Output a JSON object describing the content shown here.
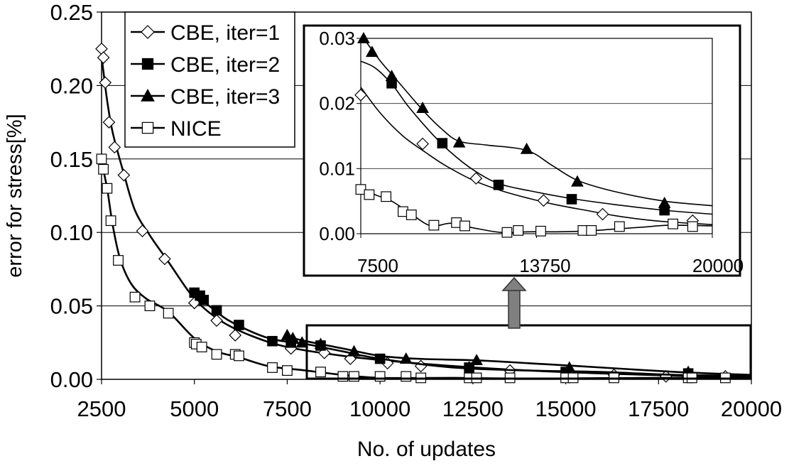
{
  "chart_data": [
    {
      "type": "line",
      "xlabel": "No. of updates",
      "ylabel": "error for stress[%]",
      "xlim": [
        2500,
        20000
      ],
      "ylim": [
        0,
        0.25
      ],
      "x_ticks": [
        2500,
        5000,
        7500,
        10000,
        12500,
        15000,
        17500,
        20000
      ],
      "y_ticks": [
        0.0,
        0.05,
        0.1,
        0.15,
        0.2,
        0.25
      ],
      "x_tick_labels": [
        "2500",
        "5000",
        "7500",
        "10000",
        "12500",
        "15000",
        "17500",
        "20000"
      ],
      "y_tick_labels": [
        "0.00",
        "0.05",
        "0.10",
        "0.15",
        "0.20",
        "0.25"
      ],
      "grid": "horizontal",
      "legend_position": "top-left",
      "series": [
        {
          "name": "CBE, iter=1",
          "marker": "open-diamond",
          "x": [
            2500,
            2550,
            2600,
            2700,
            2850,
            3100,
            3600,
            4200,
            5000,
            5600,
            6100,
            7600,
            8500,
            9200,
            10200,
            11100,
            12400,
            13500,
            15100,
            16300,
            17700,
            19300
          ],
          "y": [
            0.225,
            0.219,
            0.202,
            0.175,
            0.158,
            0.139,
            0.101,
            0.082,
            0.052,
            0.04,
            0.03,
            0.021,
            0.018,
            0.014,
            0.011,
            0.009,
            0.008,
            0.006,
            0.004,
            0.003,
            0.002,
            0.002
          ],
          "curve_x": [
            2500,
            2650,
            2800,
            3100,
            3400,
            3800,
            4300,
            5000,
            5700,
            6500,
            7500,
            9000,
            10500,
            12000,
            14000,
            16000,
            18000,
            20000
          ],
          "curve_y": [
            0.22,
            0.19,
            0.168,
            0.14,
            0.115,
            0.098,
            0.08,
            0.055,
            0.04,
            0.03,
            0.022,
            0.016,
            0.012,
            0.009,
            0.006,
            0.004,
            0.0025,
            0.0015
          ]
        },
        {
          "name": "CBE, iter=2",
          "marker": "filled-square",
          "x": [
            5000,
            5150,
            5250,
            5600,
            6200,
            7100,
            7600,
            8400,
            10000,
            12400,
            15000,
            18300
          ],
          "y": [
            0.059,
            0.057,
            0.054,
            0.047,
            0.037,
            0.026,
            0.025,
            0.023,
            0.014,
            0.008,
            0.005,
            0.004
          ],
          "curve_x": [
            5000,
            5500,
            6000,
            7000,
            8000,
            9000,
            10000,
            12000,
            14000,
            16000,
            18000,
            20000
          ],
          "curve_y": [
            0.058,
            0.048,
            0.039,
            0.028,
            0.024,
            0.019,
            0.014,
            0.008,
            0.006,
            0.005,
            0.003,
            0.0025
          ]
        },
        {
          "name": "CBE, iter=3",
          "marker": "filled-triangle",
          "x": [
            7500,
            7650,
            7900,
            8400,
            9300,
            10700,
            12600,
            15100,
            18300
          ],
          "y": [
            0.03,
            0.028,
            0.025,
            0.024,
            0.019,
            0.014,
            0.013,
            0.008,
            0.005
          ],
          "curve_x": [
            7500,
            8000,
            9000,
            10000,
            11000,
            12500,
            14000,
            16000,
            18000,
            20000
          ],
          "curve_y": [
            0.029,
            0.026,
            0.021,
            0.016,
            0.014,
            0.013,
            0.011,
            0.008,
            0.005,
            0.003
          ]
        },
        {
          "name": "NICE",
          "marker": "open-square",
          "x": [
            2500,
            2550,
            2650,
            2750,
            2950,
            3400,
            3800,
            4300,
            5000,
            5050,
            5200,
            5600,
            6100,
            6200,
            7100,
            7500,
            8400,
            9000,
            9300,
            10000,
            10700,
            11100,
            12400,
            12600,
            13500,
            15000,
            15200,
            16300,
            18300,
            18400,
            19300
          ],
          "y": [
            0.15,
            0.143,
            0.13,
            0.108,
            0.081,
            0.056,
            0.05,
            0.045,
            0.025,
            0.024,
            0.022,
            0.017,
            0.017,
            0.016,
            0.008,
            0.006,
            0.005,
            0.002,
            0.002,
            0.002,
            0.002,
            0.001,
            0.001,
            0.001,
            0.001,
            0.001,
            0.001,
            0.001,
            0.001,
            0.001,
            0.001
          ],
          "curve_x": [
            2500,
            2650,
            2800,
            3000,
            3300,
            3700,
            4300,
            5000,
            5600,
            6200,
            7000,
            8000,
            9000,
            10000,
            12000,
            14000,
            16000,
            18000,
            20000
          ],
          "curve_y": [
            0.148,
            0.13,
            0.105,
            0.082,
            0.065,
            0.055,
            0.046,
            0.028,
            0.019,
            0.015,
            0.009,
            0.006,
            0.003,
            0.001,
            0.001,
            0.0005,
            0.0008,
            0.001,
            0.001
          ]
        }
      ],
      "annotations": [
        "zoom-rectangle",
        "arrow-to-inset"
      ]
    },
    {
      "type": "line",
      "xlim": [
        7500,
        20000
      ],
      "ylim": [
        0,
        0.03
      ],
      "x_ticks": [
        7500,
        13750,
        20000
      ],
      "y_ticks": [
        0.0,
        0.01,
        0.02,
        0.03
      ],
      "x_tick_labels": [
        "7500",
        "13750",
        "20000"
      ],
      "y_tick_labels": [
        "0.00",
        "0.01",
        "0.02",
        "0.03"
      ],
      "grid": "horizontal",
      "series": [
        {
          "name": "CBE, iter=1",
          "marker": "open-diamond",
          "x": [
            7500,
            9700,
            11600,
            14000,
            16100,
            19300
          ],
          "y": [
            0.0213,
            0.0138,
            0.0085,
            0.0051,
            0.003,
            0.002
          ],
          "curve_x": [
            7500,
            8200,
            9000,
            9800,
            10500,
            11500,
            12500,
            13500,
            14500,
            15500,
            16500,
            17500,
            18500,
            20000
          ],
          "curve_y": [
            0.0225,
            0.0185,
            0.015,
            0.0125,
            0.0105,
            0.0082,
            0.0066,
            0.0054,
            0.0044,
            0.0036,
            0.0028,
            0.0022,
            0.0018,
            0.0014
          ]
        },
        {
          "name": "CBE, iter=2",
          "marker": "filled-square",
          "x": [
            8600,
            10400,
            12400,
            15000,
            18300
          ],
          "y": [
            0.0231,
            0.0139,
            0.0075,
            0.0053,
            0.0036
          ],
          "curve_x": [
            7500,
            8000,
            8600,
            9200,
            10000,
            10700,
            11500,
            12400,
            13500,
            15000,
            16500,
            18300,
            20000
          ],
          "curve_y": [
            0.0265,
            0.0255,
            0.023,
            0.0195,
            0.0155,
            0.0125,
            0.0098,
            0.0077,
            0.0066,
            0.0054,
            0.0045,
            0.0036,
            0.003
          ]
        },
        {
          "name": "CBE, iter=3",
          "marker": "filled-triangle",
          "x": [
            7600,
            7900,
            8600,
            9700,
            11000,
            13400,
            15200,
            18300
          ],
          "y": [
            0.03,
            0.0279,
            0.0242,
            0.0193,
            0.014,
            0.013,
            0.008,
            0.0047
          ],
          "curve_x": [
            7600,
            8200,
            8800,
            9700,
            10400,
            11000,
            12000,
            13400,
            14300,
            15200,
            16500,
            18300,
            20000
          ],
          "curve_y": [
            0.03,
            0.0265,
            0.0235,
            0.019,
            0.016,
            0.0142,
            0.0136,
            0.0128,
            0.0105,
            0.0082,
            0.0065,
            0.005,
            0.0043
          ]
        },
        {
          "name": "NICE",
          "marker": "open-square",
          "x": [
            7500,
            7800,
            8400,
            9000,
            9300,
            10100,
            10900,
            11200,
            12700,
            13100,
            13900,
            15400,
            15700,
            16700,
            18600,
            19300
          ],
          "y": [
            0.0068,
            0.006,
            0.0057,
            0.0034,
            0.0029,
            0.0013,
            0.0017,
            0.0012,
            0.0002,
            0.0005,
            0.0004,
            0.0005,
            0.0005,
            0.0011,
            0.0015,
            0.0011
          ],
          "curve_x": [
            7500,
            8000,
            8600,
            9300,
            10000,
            10700,
            11500,
            12500,
            13500,
            14500,
            15500,
            16500,
            17500,
            18500,
            20000
          ],
          "curve_y": [
            0.007,
            0.006,
            0.005,
            0.003,
            0.0012,
            0.0016,
            0.0009,
            0.0002,
            0.0003,
            0.0003,
            0.0004,
            0.0007,
            0.001,
            0.0013,
            0.0012
          ]
        }
      ]
    }
  ]
}
